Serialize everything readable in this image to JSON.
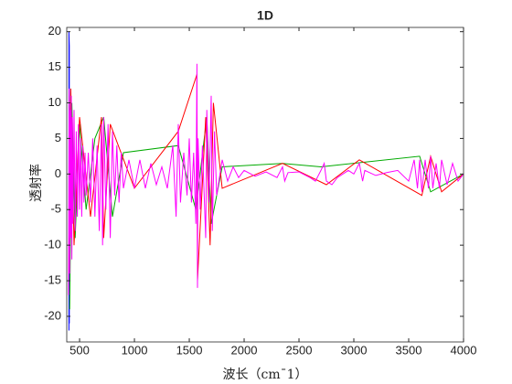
{
  "chart_data": {
    "type": "line",
    "title": "1D",
    "x_label": "波长（cm¯1）",
    "y_label": "透射率",
    "xlim": [
      383,
      4000
    ],
    "ylim": [
      -23.6,
      20.6
    ],
    "xticks": [
      500,
      1000,
      1500,
      2000,
      2500,
      3000,
      3500,
      4000
    ],
    "yticks": [
      -20,
      -15,
      -10,
      -5,
      0,
      5,
      10,
      15,
      20
    ],
    "series": [
      {
        "color": "#0000ff",
        "x": [
          403,
          403,
          406,
          406,
          410,
          410
        ],
        "values": [
          -22,
          20,
          18,
          -21,
          8,
          -12
        ]
      },
      {
        "color": "#00aa00",
        "x": [
          410,
          430,
          460,
          500,
          560,
          640,
          720,
          800,
          900,
          1400,
          1560,
          1660,
          1700,
          1800,
          2350,
          2700,
          3600,
          3700,
          4000
        ],
        "values": [
          -19,
          10,
          -9,
          7,
          -5,
          5,
          8,
          -6,
          3,
          4,
          -5,
          8,
          -7,
          1,
          1.5,
          1,
          2.5,
          -2.5,
          0
        ]
      },
      {
        "color": "#ff0000",
        "x": [
          400,
          420,
          450,
          500,
          600,
          700,
          720,
          780,
          1000,
          1400,
          1570,
          1575,
          1650,
          1690,
          1720,
          1800,
          2350,
          2750,
          3050,
          3620,
          3700,
          3800,
          4000
        ],
        "values": [
          -14,
          12,
          -10,
          8,
          -6,
          8,
          -9,
          7,
          -2,
          6,
          14,
          -15,
          8,
          -10,
          10,
          -2,
          1.5,
          -1.5,
          2,
          -3,
          2.5,
          -2.5,
          0
        ]
      },
      {
        "color": "#ff00ff",
        "x": [
          400,
          405,
          410,
          415,
          420,
          425,
          430,
          435,
          440,
          450,
          460,
          470,
          480,
          490,
          500,
          510,
          520,
          530,
          540,
          550,
          560,
          580,
          600,
          620,
          640,
          660,
          680,
          700,
          710,
          720,
          740,
          760,
          780,
          800,
          820,
          840,
          860,
          880,
          900,
          950,
          1000,
          1050,
          1100,
          1150,
          1200,
          1250,
          1300,
          1350,
          1380,
          1400,
          1420,
          1450,
          1480,
          1500,
          1520,
          1540,
          1560,
          1570,
          1575,
          1580,
          1600,
          1620,
          1650,
          1660,
          1680,
          1700,
          1710,
          1730,
          1750,
          1800,
          1850,
          1900,
          1950,
          2000,
          2100,
          2200,
          2300,
          2350,
          2370,
          2400,
          2500,
          2600,
          2650,
          2700,
          2730,
          2750,
          2800,
          2850,
          2900,
          2950,
          3000,
          3050,
          3080,
          3100,
          3200,
          3300,
          3400,
          3500,
          3550,
          3580,
          3600,
          3620,
          3650,
          3680,
          3700,
          3720,
          3750,
          3780,
          3800,
          3850,
          3900,
          3950,
          4000
        ],
        "values": [
          -17,
          12,
          -14,
          9,
          -9,
          11,
          -12,
          8,
          -7,
          9,
          -8,
          6,
          -6,
          7,
          -5,
          5,
          -6,
          4,
          -4,
          3,
          -3,
          3,
          -4,
          5,
          -6,
          4,
          -8,
          7,
          -10,
          8,
          -5,
          7,
          -9,
          6,
          -3,
          4,
          -4,
          3,
          -2,
          2,
          -2,
          2,
          -2,
          1.5,
          -1.5,
          1,
          -2,
          4,
          -6,
          7,
          -4,
          3,
          -3,
          5,
          -4,
          3,
          -7,
          15.5,
          -16,
          5,
          -5,
          4,
          -9,
          9,
          -4,
          11,
          -8,
          6,
          -3,
          2,
          -1,
          1,
          -0.5,
          0.5,
          -0.3,
          0.3,
          -0.5,
          1,
          -1,
          0.2,
          0.3,
          -0.5,
          -1,
          0.5,
          1.5,
          -1,
          -1.5,
          -0.5,
          0,
          0.5,
          0,
          1.5,
          -1,
          0.5,
          -0.2,
          0.2,
          0.5,
          -1,
          2,
          -2,
          2,
          -2.5,
          2,
          -2,
          2.5,
          -2,
          1.5,
          -2,
          2,
          -1.5,
          1.5,
          -1,
          0
        ]
      }
    ]
  }
}
